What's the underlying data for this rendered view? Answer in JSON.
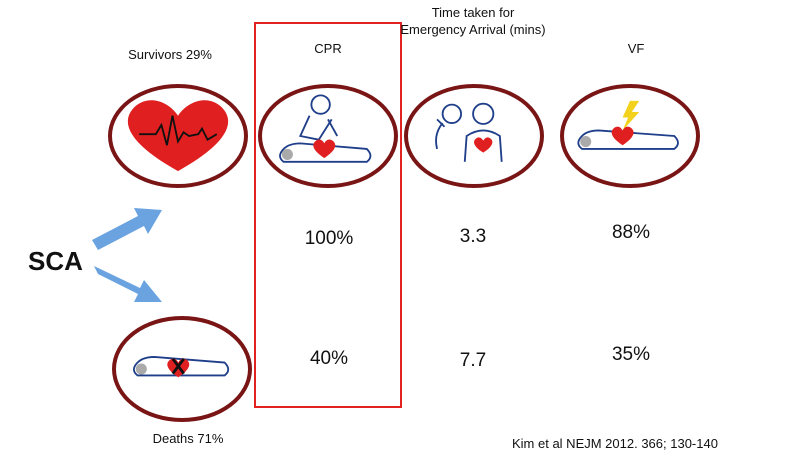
{
  "colors": {
    "oval_border": "#7a1515",
    "highlight_box": "#e02222",
    "heart": "#e02020",
    "body_outline": "#1f3f8a",
    "arrow": "#6aa3e0",
    "lightning": "#f2d21c"
  },
  "survivors_label": "Survivors 29%",
  "deaths_label": "Deaths 71%",
  "sca_label": "SCA",
  "columns": [
    {
      "header": "CPR",
      "survivors_value": "100%",
      "deaths_value": "40%",
      "icon": "cpr-icon"
    },
    {
      "header": "Time taken for Emergency Arrival (mins)",
      "survivors_value": "3.3",
      "deaths_value": "7.7",
      "icon": "paramedic-icon"
    },
    {
      "header": "VF",
      "survivors_value": "88%",
      "deaths_value": "35%",
      "icon": "vf-shock-icon"
    }
  ],
  "citation": "Kim et al NEJM 2012. 366; 130-140"
}
